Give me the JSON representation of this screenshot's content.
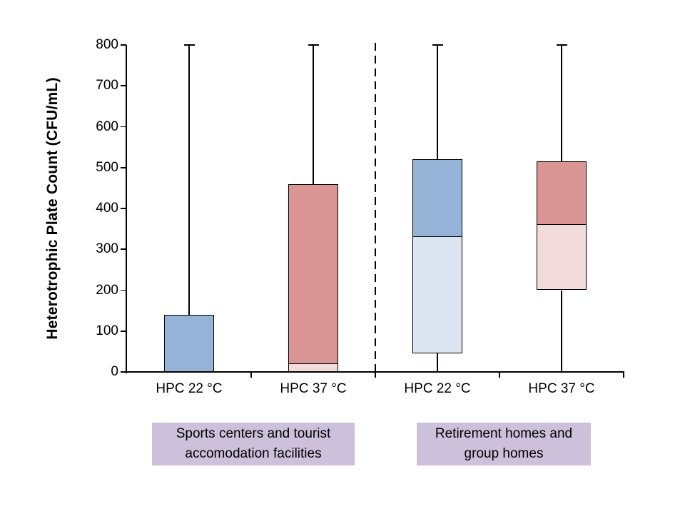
{
  "chart_data": {
    "type": "boxplot",
    "title": "",
    "ylabel": "Heterotrophic Plate Count (CFU/mL)",
    "xlabel": "",
    "ylim": [
      0,
      800
    ],
    "yticks": [
      0,
      100,
      200,
      300,
      400,
      500,
      600,
      700,
      800
    ],
    "grid": false,
    "legend": false,
    "categories": [
      "HPC 22 °C",
      "HPC 37 °C",
      "HPC 22 °C",
      "HPC 37 °C"
    ],
    "groups": [
      {
        "id": "sports",
        "lines": [
          "Sports centers and tourist",
          "accomodation facilities"
        ],
        "category_indexes": [
          0,
          1
        ]
      },
      {
        "id": "retirement",
        "lines": [
          "Retirement homes and",
          "group homes"
        ],
        "category_indexes": [
          2,
          3
        ]
      }
    ],
    "separator": {
      "style": "dashed",
      "between_category_indexes": [
        1,
        2
      ]
    },
    "series": [
      {
        "group": "sports",
        "category": "HPC 22 °C",
        "q1": 0,
        "median": 0,
        "q3": 140,
        "whisker_low": 0,
        "whisker_high": 800,
        "fill_upper": "#95B3D7",
        "fill_lower": "#DCE6F1"
      },
      {
        "group": "sports",
        "category": "HPC 37 °C",
        "q1": 0,
        "median": 20,
        "q3": 460,
        "whisker_low": 0,
        "whisker_high": 800,
        "fill_upper": "#D99694",
        "fill_lower": "#F2DCDB"
      },
      {
        "group": "retirement",
        "category": "HPC 22 °C",
        "q1": 45,
        "median": 330,
        "q3": 520,
        "whisker_low": 0,
        "whisker_high": 800,
        "fill_upper": "#95B3D7",
        "fill_lower": "#DCE6F1"
      },
      {
        "group": "retirement",
        "category": "HPC 37 °C",
        "q1": 200,
        "median": 360,
        "q3": 515,
        "whisker_low": 0,
        "whisker_high": 800,
        "fill_upper": "#D99694",
        "fill_lower": "#F2DCDB"
      }
    ]
  },
  "colors": {
    "box_border": "#000000",
    "axis": "#000000",
    "text": "#000000",
    "group_label_bg": "#CCC0DA",
    "blue": "#95B3D7",
    "light_blue": "#DCE6F1",
    "salmon": "#D99694",
    "light_pink": "#F2DCDB",
    "background": "#FFFFFF"
  }
}
